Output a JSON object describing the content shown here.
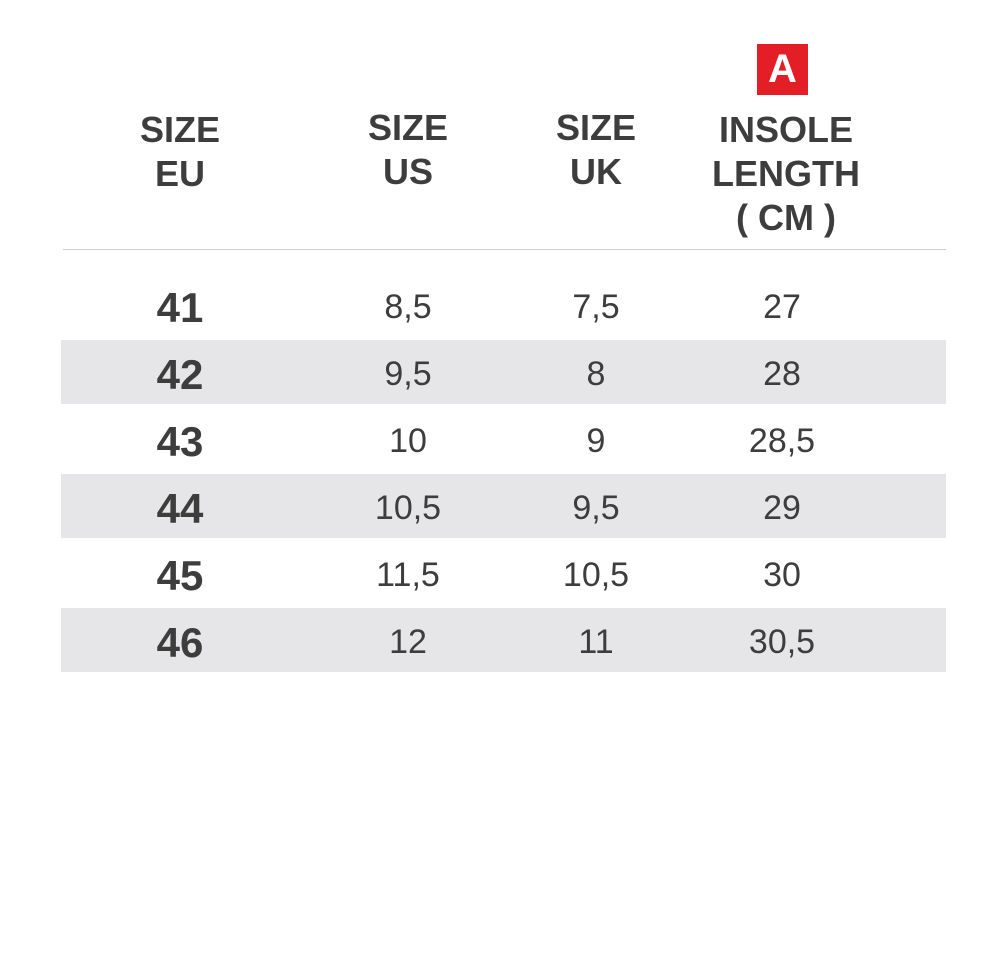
{
  "badge": "A",
  "table": {
    "header": [
      [
        "SIZE",
        "EU"
      ],
      [
        "SIZE",
        "US"
      ],
      [
        "SIZE",
        "UK"
      ],
      [
        "INSOLE",
        "LENGTH",
        "( CM )"
      ]
    ],
    "rows": [
      [
        "41",
        "8,5",
        "7,5",
        "27"
      ],
      [
        "42",
        "9,5",
        "8",
        "28"
      ],
      [
        "43",
        "10",
        "9",
        "28,5"
      ],
      [
        "44",
        "10,5",
        "9,5",
        "29"
      ],
      [
        "45",
        "11,5",
        "10,5",
        "30"
      ],
      [
        "46",
        "12",
        "11",
        "30,5"
      ]
    ]
  }
}
